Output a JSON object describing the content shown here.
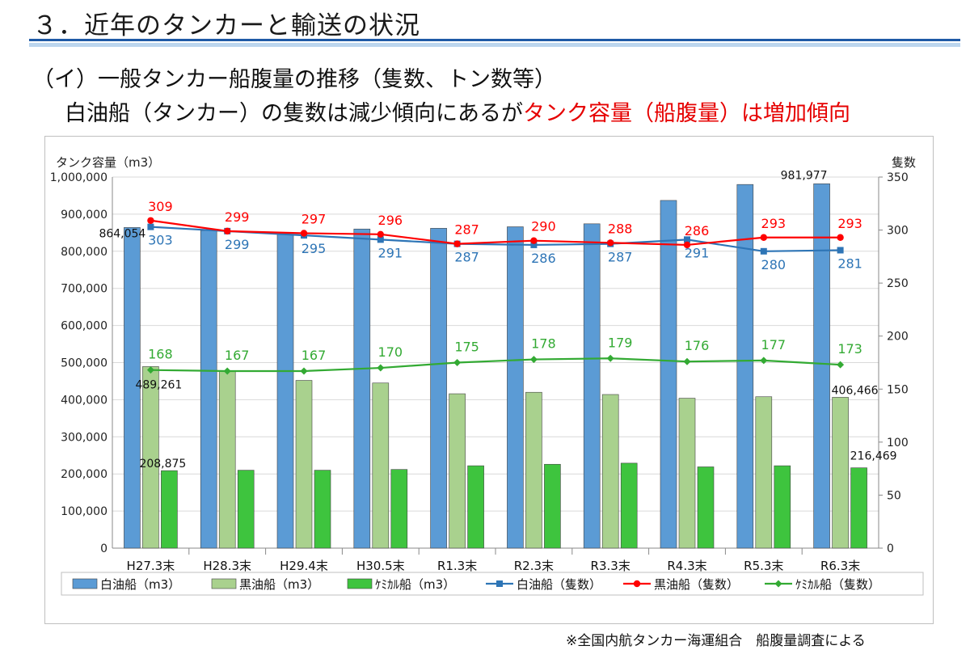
{
  "header": {
    "title": "３．近年のタンカーと輸送の状況",
    "subtitle": "（イ）一般タンカー船腹量の推移（隻数、トン数等）",
    "lead_prefix": "白油船（タンカー）の隻数は減少傾向にあるが",
    "lead_highlight": "タンク容量（船腹量）は増加傾向"
  },
  "colors": {
    "white_oil_bar": "#5b9bd5",
    "black_oil_bar": "#a9d18e",
    "chemical_bar": "#3ec43e",
    "white_oil_line": "#2e75b6",
    "black_oil_line": "#ff0000",
    "chemical_line": "#33aa33",
    "title_rule": "#1f5aa6"
  },
  "chart_data": {
    "type": "bar",
    "categories": [
      "H27.3末",
      "H28.3末",
      "H29.4末",
      "H30.5末",
      "R1.3末",
      "R2.3末",
      "R3.3末",
      "R4.3末",
      "R5.3末",
      "R6.3末"
    ],
    "y_left_label": "タンク容量（m3）",
    "y_right_label": "隻数",
    "ylim_left": [
      0,
      1000000
    ],
    "ylim_right": [
      0,
      350
    ],
    "y_left_ticks": [
      "0",
      "100,000",
      "200,000",
      "300,000",
      "400,000",
      "500,000",
      "600,000",
      "700,000",
      "800,000",
      "900,000",
      "1,000,000"
    ],
    "y_right_ticks": [
      "0",
      "50",
      "100",
      "150",
      "200",
      "250",
      "300",
      "350"
    ],
    "grid": true,
    "legend_position": "bottom",
    "bar_series": [
      {
        "name": "白油船（m3）",
        "color": "#5b9bd5",
        "values": [
          864054,
          856000,
          846000,
          860000,
          862000,
          866000,
          874000,
          937000,
          980000,
          981977
        ]
      },
      {
        "name": "黒油船（m3）",
        "color": "#a9d18e",
        "values": [
          489261,
          476000,
          452000,
          445000,
          416000,
          420000,
          414000,
          404000,
          408000,
          406466
        ]
      },
      {
        "name": "ｹﾐｶﾙ船（m3）",
        "color": "#3ec43e",
        "values": [
          208875,
          210000,
          210000,
          212000,
          222000,
          226000,
          229000,
          219000,
          222000,
          216469
        ]
      }
    ],
    "line_series": [
      {
        "name": "白油船（隻数）",
        "color": "#2e75b6",
        "marker": "square",
        "values": [
          303,
          299,
          295,
          291,
          287,
          286,
          287,
          291,
          280,
          281
        ]
      },
      {
        "name": "黒油船（隻数）",
        "color": "#ff0000",
        "marker": "circle",
        "values": [
          309,
          299,
          297,
          296,
          287,
          290,
          288,
          286,
          293,
          293
        ]
      },
      {
        "name": "ｹﾐｶﾙ船（隻数）",
        "color": "#33aa33",
        "marker": "diamond",
        "values": [
          168,
          167,
          167,
          170,
          175,
          178,
          179,
          176,
          177,
          173
        ]
      }
    ],
    "bar_value_labels": [
      {
        "series": 0,
        "index": 0,
        "text": "864,054"
      },
      {
        "series": 0,
        "index": 9,
        "text": "981,977"
      },
      {
        "series": 1,
        "index": 0,
        "text": "489,261"
      },
      {
        "series": 1,
        "index": 9,
        "text": "406,466"
      },
      {
        "series": 2,
        "index": 0,
        "text": "208,875"
      },
      {
        "series": 2,
        "index": 9,
        "text": "216,469"
      }
    ]
  },
  "footer": {
    "source_note": "※全国内航タンカー海運組合　船腹量調査による"
  }
}
